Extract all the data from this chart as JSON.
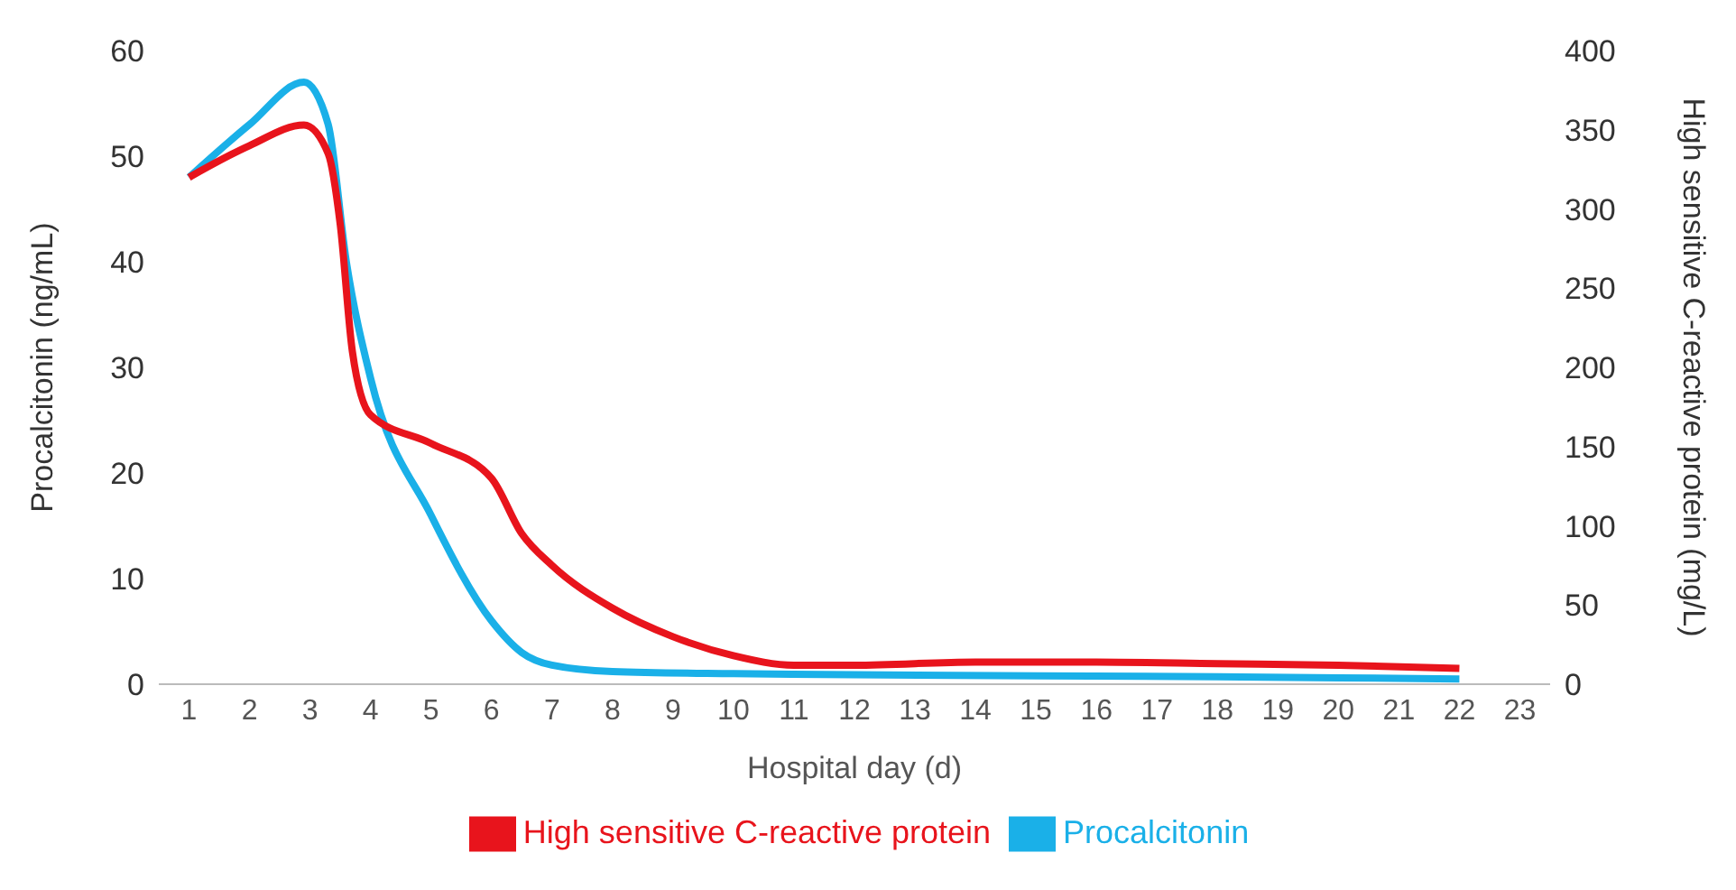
{
  "chart_data": {
    "type": "line",
    "xlabel": "Hospital day (d)",
    "ylabel": "Procalcitonin (ng/mL)",
    "y2label": "High sensitive C-reactive protein (mg/L)",
    "xlim": [
      0.5,
      23.5
    ],
    "xticks": [
      1,
      2,
      3,
      4,
      5,
      6,
      7,
      8,
      9,
      10,
      11,
      12,
      13,
      14,
      15,
      16,
      17,
      18,
      19,
      20,
      21,
      22,
      23
    ],
    "ylim": [
      0,
      60
    ],
    "yticks": [
      0,
      10,
      20,
      30,
      40,
      50,
      60
    ],
    "y2lim": [
      0,
      400
    ],
    "y2ticks": [
      0,
      50,
      100,
      150,
      200,
      250,
      300,
      350,
      400
    ],
    "grid": false,
    "legend": "bottom",
    "marker": "none",
    "series": [
      {
        "name": "Procalcitonin",
        "color": "#1ab0e8",
        "x": [
          1,
          2,
          2.9,
          3.3,
          3.6,
          4,
          5,
          6,
          6.5,
          7,
          8,
          10,
          12,
          15,
          18,
          22
        ],
        "values": [
          48,
          53,
          57,
          53,
          40,
          29,
          16,
          6,
          3,
          1.8,
          1.2,
          1,
          0.9,
          0.8,
          0.7,
          0.5
        ]
      },
      {
        "name": "High sensitive C-reactive protein",
        "color": "#e8141c",
        "axis": "y2",
        "x": [
          1,
          2,
          2.9,
          3.3,
          3.5,
          3.7,
          4,
          5,
          6,
          6.5,
          7,
          8,
          9,
          10,
          11,
          12,
          14,
          16,
          18,
          20,
          22
        ],
        "values": [
          320,
          340,
          353,
          335,
          290,
          210,
          170,
          152,
          130,
          95,
          75,
          48,
          30,
          18,
          12,
          12,
          14,
          14,
          13,
          12,
          10
        ]
      }
    ]
  }
}
